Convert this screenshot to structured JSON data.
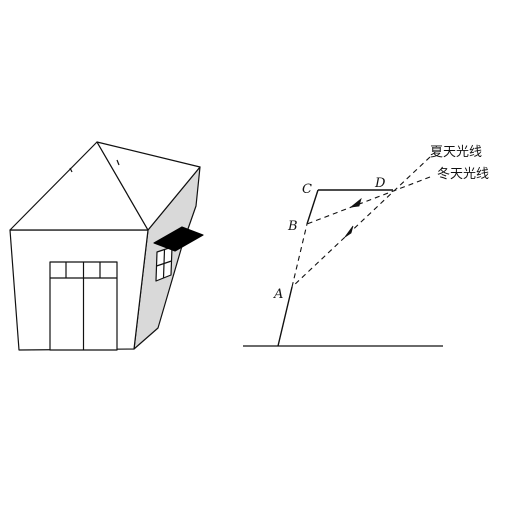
{
  "labels": {
    "point_a": "A",
    "point_b": "B",
    "point_c": "C",
    "point_d": "D",
    "summer_rays": "夏天光线",
    "winter_rays": "冬天光线"
  },
  "colors": {
    "stroke": "#111111",
    "side_wall_shade": "#d9d9d9",
    "awning_fill": "#000000",
    "background": "#ffffff"
  }
}
